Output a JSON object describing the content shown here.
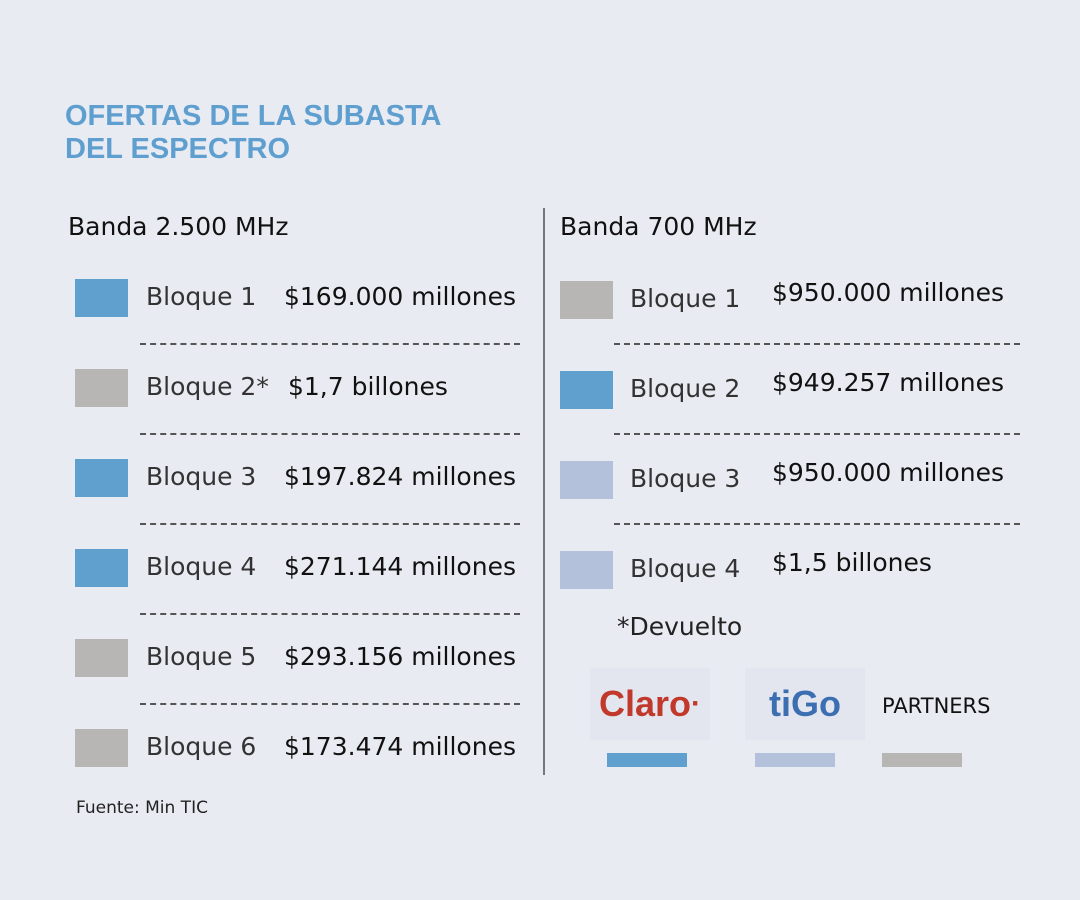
{
  "title_line1": "OFERTAS DE LA SUBASTA",
  "title_line2": "DEL ESPECTRO",
  "colors": {
    "claro": "#5fa0cf",
    "tigo": "#b4c1da",
    "partners": "#b7b6b5",
    "title": "#5f9fd0",
    "background": "#e8ebf2"
  },
  "left": {
    "header": "Banda 2.500 MHz",
    "rows": [
      {
        "label": "Bloque 1",
        "value": "$169.000 millones",
        "operator": "claro"
      },
      {
        "label": "Bloque 2*",
        "value": "$1,7 billones",
        "operator": "partners"
      },
      {
        "label": "Bloque 3",
        "value": "$197.824 millones",
        "operator": "claro"
      },
      {
        "label": "Bloque 4",
        "value": "$271.144 millones",
        "operator": "claro"
      },
      {
        "label": "Bloque 5",
        "value": "$293.156 millones",
        "operator": "partners"
      },
      {
        "label": "Bloque 6",
        "value": "$173.474 millones",
        "operator": "partners"
      }
    ]
  },
  "right": {
    "header": "Banda 700 MHz",
    "rows": [
      {
        "label": "Bloque 1",
        "value": "$950.000 millones",
        "operator": "partners"
      },
      {
        "label": "Bloque 2",
        "value": "$949.257 millones",
        "operator": "claro"
      },
      {
        "label": "Bloque 3",
        "value": "$950.000 millones",
        "operator": "tigo"
      },
      {
        "label": "Bloque 4",
        "value": "$1,5 billones",
        "operator": "tigo"
      }
    ]
  },
  "footnote": "*Devuelto",
  "legend": {
    "claro": "Claro",
    "tigo": "tigo",
    "partners": "PARTNERS"
  },
  "source": "Fuente: Min TIC"
}
